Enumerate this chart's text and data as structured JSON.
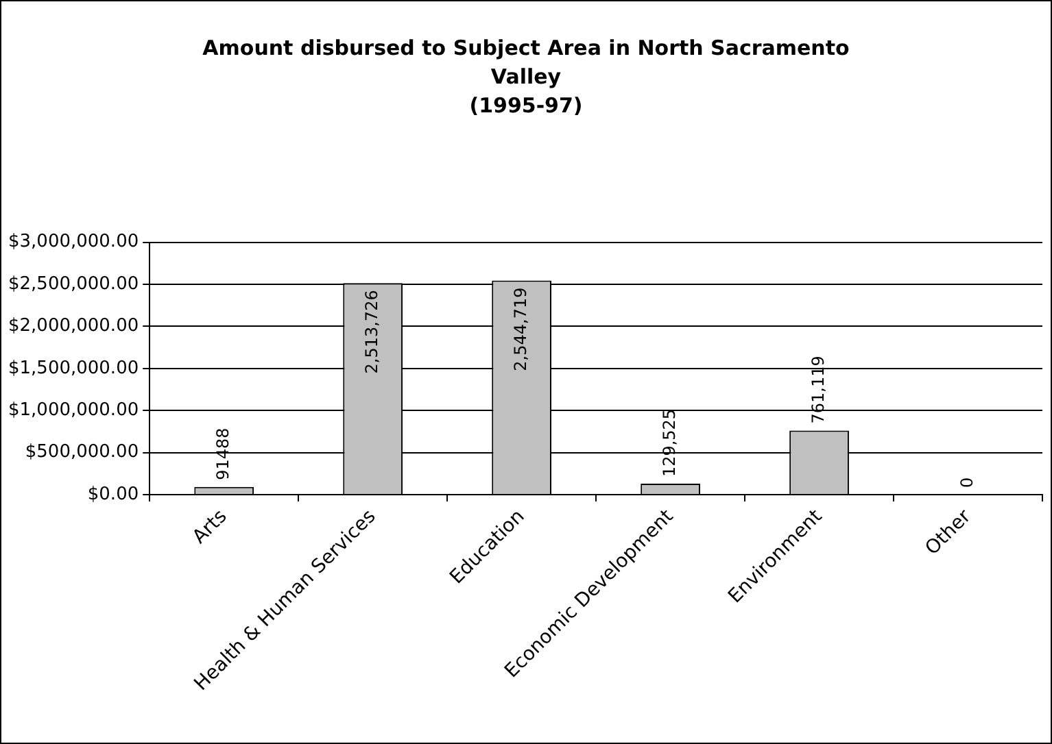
{
  "chart_data": {
    "type": "bar",
    "title": "Amount disbursed to Subject Area in North Sacramento Valley",
    "subtitle": "(1995-97)",
    "categories": [
      "Arts",
      "Health & Human Services",
      "Education",
      "Economic Development",
      "Environment",
      "Other"
    ],
    "values": [
      91488,
      2513726,
      2544719,
      129525,
      761119,
      0
    ],
    "value_labels": [
      "91488",
      "2,513,726",
      "2,544,719",
      "129,525",
      "761,119",
      "0"
    ],
    "color": "#c0c0c0",
    "ylim": [
      0,
      3000000
    ],
    "yticks": [
      {
        "value": 0,
        "label": "$0.00"
      },
      {
        "value": 500000,
        "label": "$500,000.00"
      },
      {
        "value": 1000000,
        "label": "$1,000,000.00"
      },
      {
        "value": 1500000,
        "label": "$1,500,000.00"
      },
      {
        "value": 2000000,
        "label": "$2,000,000.00"
      },
      {
        "value": 2500000,
        "label": "$2,500,000.00"
      },
      {
        "value": 3000000,
        "label": "$3,000,000.00"
      }
    ],
    "grid": "y",
    "legend": false
  }
}
